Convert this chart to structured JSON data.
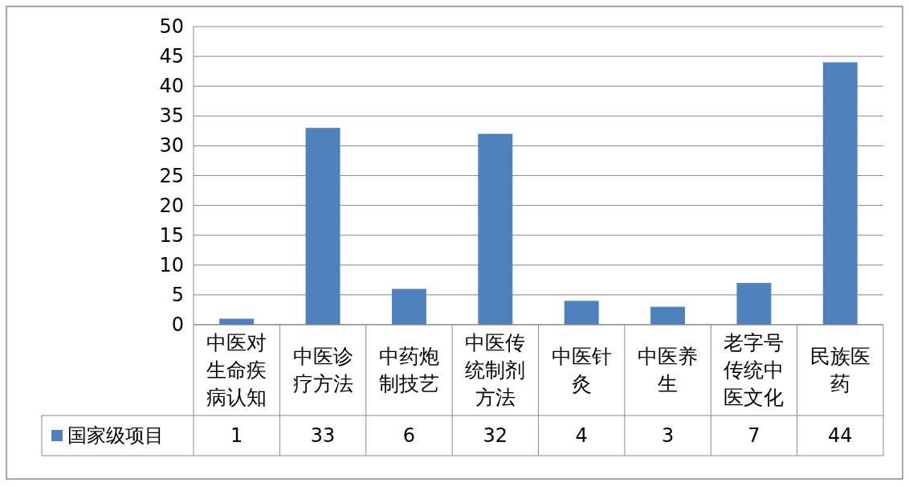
{
  "chart_data": {
    "type": "bar",
    "categories": [
      "中医对生命疾病认知",
      "中医诊疗方法",
      "中药炮制技艺",
      "中医传统制剂方法",
      "中医针灸",
      "中医养生",
      "老字号传统中医文化",
      "民族医药"
    ],
    "series": [
      {
        "name": "国家级项目",
        "color": "#4f81bd",
        "values": [
          1,
          33,
          6,
          32,
          4,
          3,
          7,
          44
        ]
      }
    ],
    "ylim": [
      0,
      50
    ],
    "yticks": [
      0,
      5,
      10,
      15,
      20,
      25,
      30,
      35,
      40,
      45,
      50
    ],
    "grid": "y",
    "data_labels": true,
    "legend": "bottom"
  }
}
